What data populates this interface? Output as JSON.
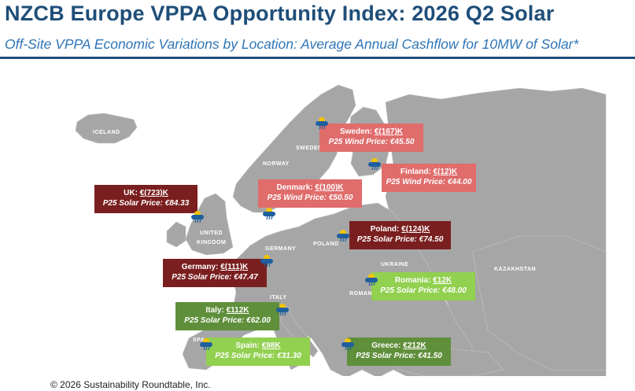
{
  "title": "NZCB Europe VPPA Opportunity Index: 2026 Q2 Solar",
  "subtitle": "Off-Site VPPA Economic Variations by Location: Average Annual Cashflow for 10MW of Solar*",
  "footer": "© 2026 Sustainability Roundtable, Inc.",
  "map_labels": {
    "iceland": "ICELAND",
    "sweden": "SWEDEN",
    "norway": "NORWAY",
    "united": "UNITED",
    "kingdom": "KINGDOM",
    "germany": "GERMANY",
    "poland": "POLAND",
    "ukraine": "UKRAINE",
    "romania": "ROMANIA",
    "kazakhstan": "KAZAKHSTAN",
    "italy": "ITALY",
    "spain": "SPA"
  },
  "markers": [
    {
      "key": "sweden",
      "country": "Sweden",
      "value": "€(167)K",
      "price": "P25 Wind Price: €45.50",
      "type": "wind"
    },
    {
      "key": "finland",
      "country": "Finland",
      "value": "€(12)K",
      "price": "P25 Wind Price: €44.00",
      "type": "wind"
    },
    {
      "key": "denmark",
      "country": "Denmark",
      "value": "€(100)K",
      "price": "P25 Wind Price: €50.50",
      "type": "wind"
    },
    {
      "key": "uk",
      "country": "UK",
      "value": "€(723)K",
      "price": "P25 Solar Price: €84.33",
      "type": "solar"
    },
    {
      "key": "poland",
      "country": "Poland",
      "value": "€(124)K",
      "price": "P25 Solar Price: €74.50",
      "type": "solar"
    },
    {
      "key": "germany",
      "country": "Germany",
      "value": "€(111)K",
      "price": "P25 Solar Price: €47.47",
      "type": "solar"
    },
    {
      "key": "romania",
      "country": "Romania",
      "value": "€12K",
      "price": "P25 Solar Price: €48.00",
      "type": "solar"
    },
    {
      "key": "italy",
      "country": "Italy",
      "value": "€112K",
      "price": "P25 Solar Price: €62.00",
      "type": "solar"
    },
    {
      "key": "spain",
      "country": "Spain",
      "value": "€98K",
      "price": "P25 Solar Price: €31.30",
      "type": "solar"
    },
    {
      "key": "greece",
      "country": "Greece",
      "value": "€212K",
      "price": "P25 Solar Price: €41.50",
      "type": "solar"
    }
  ],
  "colors": {
    "map_fill": "#a6a6a6",
    "sea": "#ffffff",
    "negative_large": "#7a1f1f",
    "negative_small": "#e06c6c",
    "positive_large": "#5f8f3b",
    "positive_small": "#92d050"
  }
}
